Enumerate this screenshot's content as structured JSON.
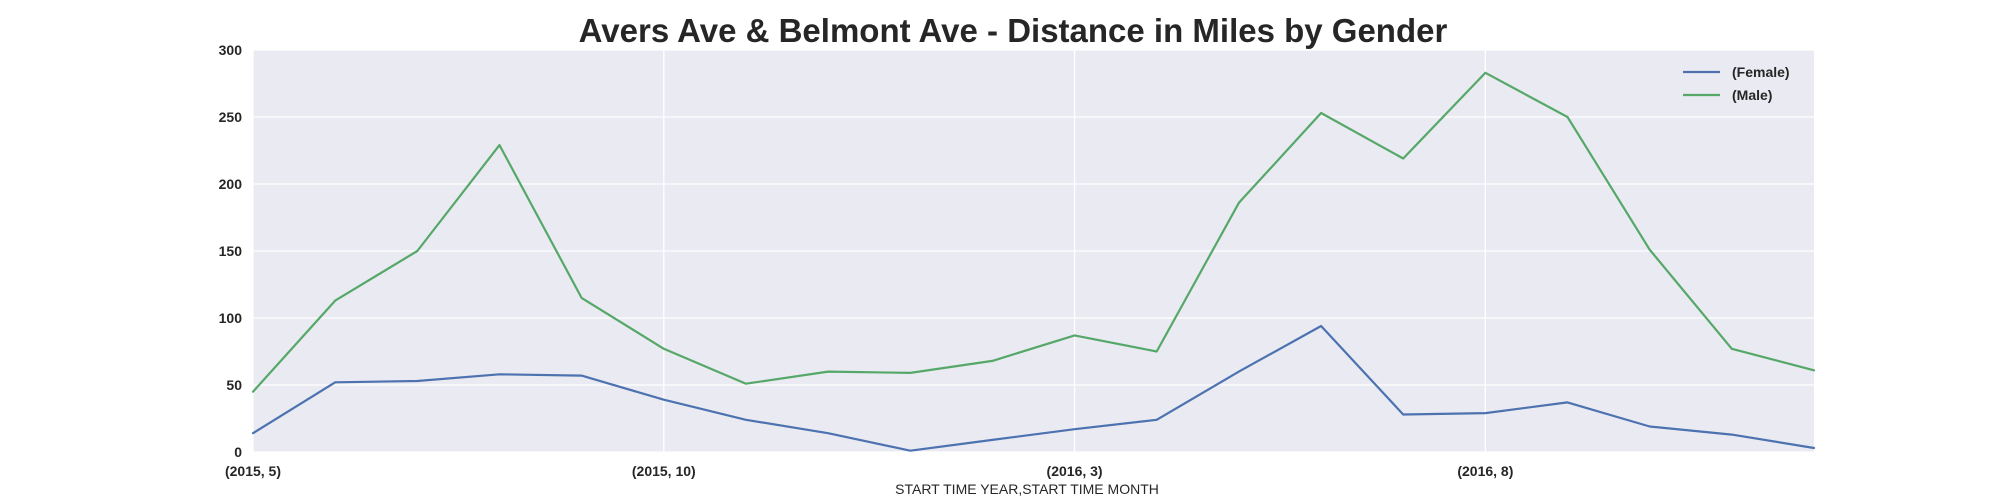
{
  "chart_data": {
    "type": "line",
    "title": "Avers Ave & Belmont Ave - Distance in Miles by Gender",
    "xlabel": "START TIME YEAR,START TIME MONTH",
    "ylabel": "",
    "x": [
      "(2015, 5)",
      "(2015, 6)",
      "(2015, 7)",
      "(2015, 8)",
      "(2015, 9)",
      "(2015, 10)",
      "(2015, 11)",
      "(2015, 12)",
      "(2016, 1)",
      "(2016, 2)",
      "(2016, 3)",
      "(2016, 4)",
      "(2016, 5)",
      "(2016, 6)",
      "(2016, 7)",
      "(2016, 8)",
      "(2016, 9)",
      "(2016, 10)",
      "(2016, 11)",
      "(2016, 12)"
    ],
    "x_tick_labels": [
      {
        "index": 0,
        "label": "(2015, 5)"
      },
      {
        "index": 5,
        "label": "(2015, 10)"
      },
      {
        "index": 10,
        "label": "(2016, 3)"
      },
      {
        "index": 15,
        "label": "(2016, 8)"
      }
    ],
    "ylim": [
      0,
      300
    ],
    "yticks": [
      0,
      50,
      100,
      150,
      200,
      250,
      300
    ],
    "grid": true,
    "legend_position": "top-right",
    "series": [
      {
        "name": "(Female)",
        "color": "#4c72b0",
        "values": [
          14,
          52,
          53,
          58,
          57,
          39,
          24,
          14,
          1,
          9,
          17,
          24,
          60,
          94,
          28,
          29,
          37,
          19,
          13,
          3
        ]
      },
      {
        "name": "(Male)",
        "color": "#55a868",
        "values": [
          45,
          113,
          150,
          229,
          115,
          77,
          51,
          60,
          59,
          68,
          87,
          75,
          186,
          253,
          219,
          283,
          250,
          151,
          77,
          61
        ]
      }
    ],
    "colors": {
      "plot_background": "#eaeaf2",
      "grid": "#ffffff",
      "text": "#262626"
    }
  }
}
